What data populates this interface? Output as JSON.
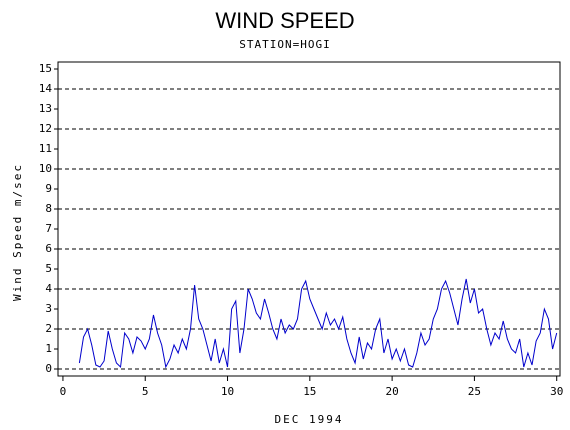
{
  "chart_data": {
    "type": "line",
    "title": "WIND SPEED",
    "subtitle": "STATION=HOGI",
    "x_label": "DEC 1994",
    "y_label": "Wind Speed m/sec",
    "xlim": [
      -0.3,
      30.2
    ],
    "ylim": [
      -0.35,
      15.35
    ],
    "xticks": [
      0,
      5,
      10,
      15,
      20,
      25,
      30
    ],
    "yticks": [
      0,
      1,
      2,
      3,
      4,
      5,
      6,
      7,
      8,
      9,
      10,
      11,
      12,
      13,
      14,
      15
    ],
    "grid_lines": [
      0,
      2,
      4,
      6,
      8,
      10,
      12,
      14
    ],
    "series": [
      {
        "name": "Wind Speed",
        "color": "#0000cc",
        "x": [
          1,
          1.25,
          1.5,
          1.75,
          2,
          2.25,
          2.5,
          2.75,
          3,
          3.25,
          3.5,
          3.75,
          4,
          4.25,
          4.5,
          4.75,
          5,
          5.25,
          5.5,
          5.75,
          6,
          6.25,
          6.5,
          6.75,
          7,
          7.25,
          7.5,
          7.75,
          8,
          8.25,
          8.5,
          8.75,
          9,
          9.25,
          9.5,
          9.75,
          10,
          10.25,
          10.5,
          10.75,
          11,
          11.25,
          11.5,
          11.75,
          12,
          12.25,
          12.5,
          12.75,
          13,
          13.25,
          13.5,
          13.75,
          14,
          14.25,
          14.5,
          14.75,
          15,
          15.25,
          15.5,
          15.75,
          16,
          16.25,
          16.5,
          16.75,
          17,
          17.25,
          17.5,
          17.75,
          18,
          18.25,
          18.5,
          18.75,
          19,
          19.25,
          19.5,
          19.75,
          20,
          20.25,
          20.5,
          20.75,
          21,
          21.25,
          21.5,
          21.75,
          22,
          22.25,
          22.5,
          22.75,
          23,
          23.25,
          23.5,
          23.75,
          24,
          24.25,
          24.5,
          24.75,
          25,
          25.25,
          25.5,
          25.75,
          26,
          26.25,
          26.5,
          26.75,
          27,
          27.25,
          27.5,
          27.75,
          28,
          28.25,
          28.5,
          28.75,
          29,
          29.25,
          29.5,
          29.75,
          30
        ],
        "values": [
          0.3,
          1.6,
          2.0,
          1.2,
          0.2,
          0.1,
          0.4,
          1.9,
          1.0,
          0.3,
          0.1,
          1.8,
          1.5,
          0.8,
          1.6,
          1.4,
          1.0,
          1.5,
          2.7,
          1.8,
          1.2,
          0.1,
          0.5,
          1.2,
          0.8,
          1.5,
          1.0,
          2.0,
          4.2,
          2.5,
          2.0,
          1.2,
          0.4,
          1.5,
          0.3,
          1.0,
          0.1,
          3.0,
          3.4,
          0.8,
          2.0,
          4.0,
          3.5,
          2.8,
          2.5,
          3.5,
          2.8,
          2.0,
          1.5,
          2.5,
          1.8,
          2.2,
          2.0,
          2.5,
          4.0,
          4.4,
          3.5,
          3.0,
          2.5,
          2.0,
          2.8,
          2.2,
          2.5,
          2.0,
          2.6,
          1.5,
          0.8,
          0.3,
          1.6,
          0.5,
          1.3,
          1.0,
          2.0,
          2.5,
          0.8,
          1.5,
          0.5,
          1.0,
          0.4,
          1.0,
          0.2,
          0.1,
          0.8,
          1.8,
          1.2,
          1.5,
          2.5,
          3.0,
          4.0,
          4.4,
          3.8,
          3.0,
          2.2,
          3.5,
          4.5,
          3.3,
          4.0,
          2.8,
          3.0,
          2.0,
          1.2,
          1.8,
          1.5,
          2.4,
          1.5,
          1.0,
          0.8,
          1.5,
          0.1,
          0.8,
          0.2,
          1.4,
          1.8,
          3.0,
          2.5,
          1.0,
          1.8
        ]
      }
    ]
  }
}
